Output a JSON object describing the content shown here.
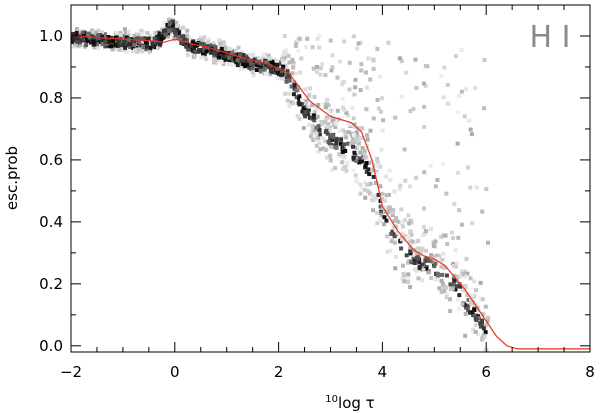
{
  "chart_data": {
    "type": "scatter",
    "title": "",
    "xlabel_sup": "10",
    "xlabel": "log τ",
    "ylabel": "esc.prob",
    "annotation": "H I",
    "xlim": [
      -2,
      8
    ],
    "ylim": [
      -0.02,
      1.1
    ],
    "x_ticks": [
      -2,
      0,
      2,
      4,
      6,
      8
    ],
    "x_tick_labels": [
      "−2",
      "0",
      "2",
      "4",
      "6",
      "8"
    ],
    "y_ticks": [
      0.0,
      0.2,
      0.4,
      0.6,
      0.8,
      1.0
    ],
    "y_tick_labels": [
      "0.0",
      "0.2",
      "0.4",
      "0.6",
      "0.8",
      "1.0"
    ],
    "grid": false,
    "colors": {
      "fit_line": "#e8321e",
      "density_dark": "#000000",
      "density_light": "#d8d8d8"
    },
    "series": [
      {
        "kind": "line",
        "x": [
          -2.0,
          -1.5,
          -1.0,
          -0.5,
          -0.2,
          0.0,
          0.3,
          0.6,
          1.0,
          1.4,
          1.8,
          2.2,
          2.6,
          3.0,
          3.4,
          3.6,
          3.8,
          4.0,
          4.3,
          4.6,
          4.8,
          5.0,
          5.2,
          5.4,
          5.6,
          5.8,
          6.0,
          6.2,
          6.4,
          6.6,
          7.0,
          8.0
        ],
        "y": [
          1.0,
          0.995,
          0.99,
          0.985,
          0.98,
          0.99,
          0.975,
          0.965,
          0.945,
          0.925,
          0.91,
          0.88,
          0.79,
          0.74,
          0.72,
          0.69,
          0.6,
          0.45,
          0.37,
          0.31,
          0.29,
          0.28,
          0.26,
          0.22,
          0.18,
          0.13,
          0.08,
          0.03,
          0.0,
          -0.01,
          -0.01,
          -0.01
        ]
      },
      {
        "kind": "density",
        "x": [
          -2.0,
          -1.6,
          -1.2,
          -0.8,
          -0.5,
          -0.3,
          -0.1,
          0.0,
          0.2,
          0.4,
          0.6,
          0.8,
          1.0,
          1.2,
          1.4,
          1.6,
          1.8,
          2.0,
          2.2,
          2.4,
          2.6,
          2.8,
          3.0,
          3.2,
          3.4,
          3.6,
          3.8,
          4.0,
          4.2,
          4.4,
          4.6,
          4.8,
          5.0,
          5.2,
          5.4,
          5.6,
          5.8,
          6.0
        ],
        "y": [
          1.0,
          0.995,
          0.99,
          0.985,
          0.98,
          1.0,
          1.04,
          1.02,
          0.98,
          0.97,
          0.96,
          0.95,
          0.94,
          0.93,
          0.92,
          0.91,
          0.905,
          0.9,
          0.86,
          0.78,
          0.74,
          0.7,
          0.67,
          0.65,
          0.63,
          0.6,
          0.53,
          0.42,
          0.36,
          0.31,
          0.28,
          0.27,
          0.25,
          0.23,
          0.2,
          0.14,
          0.09,
          0.04
        ]
      }
    ]
  }
}
